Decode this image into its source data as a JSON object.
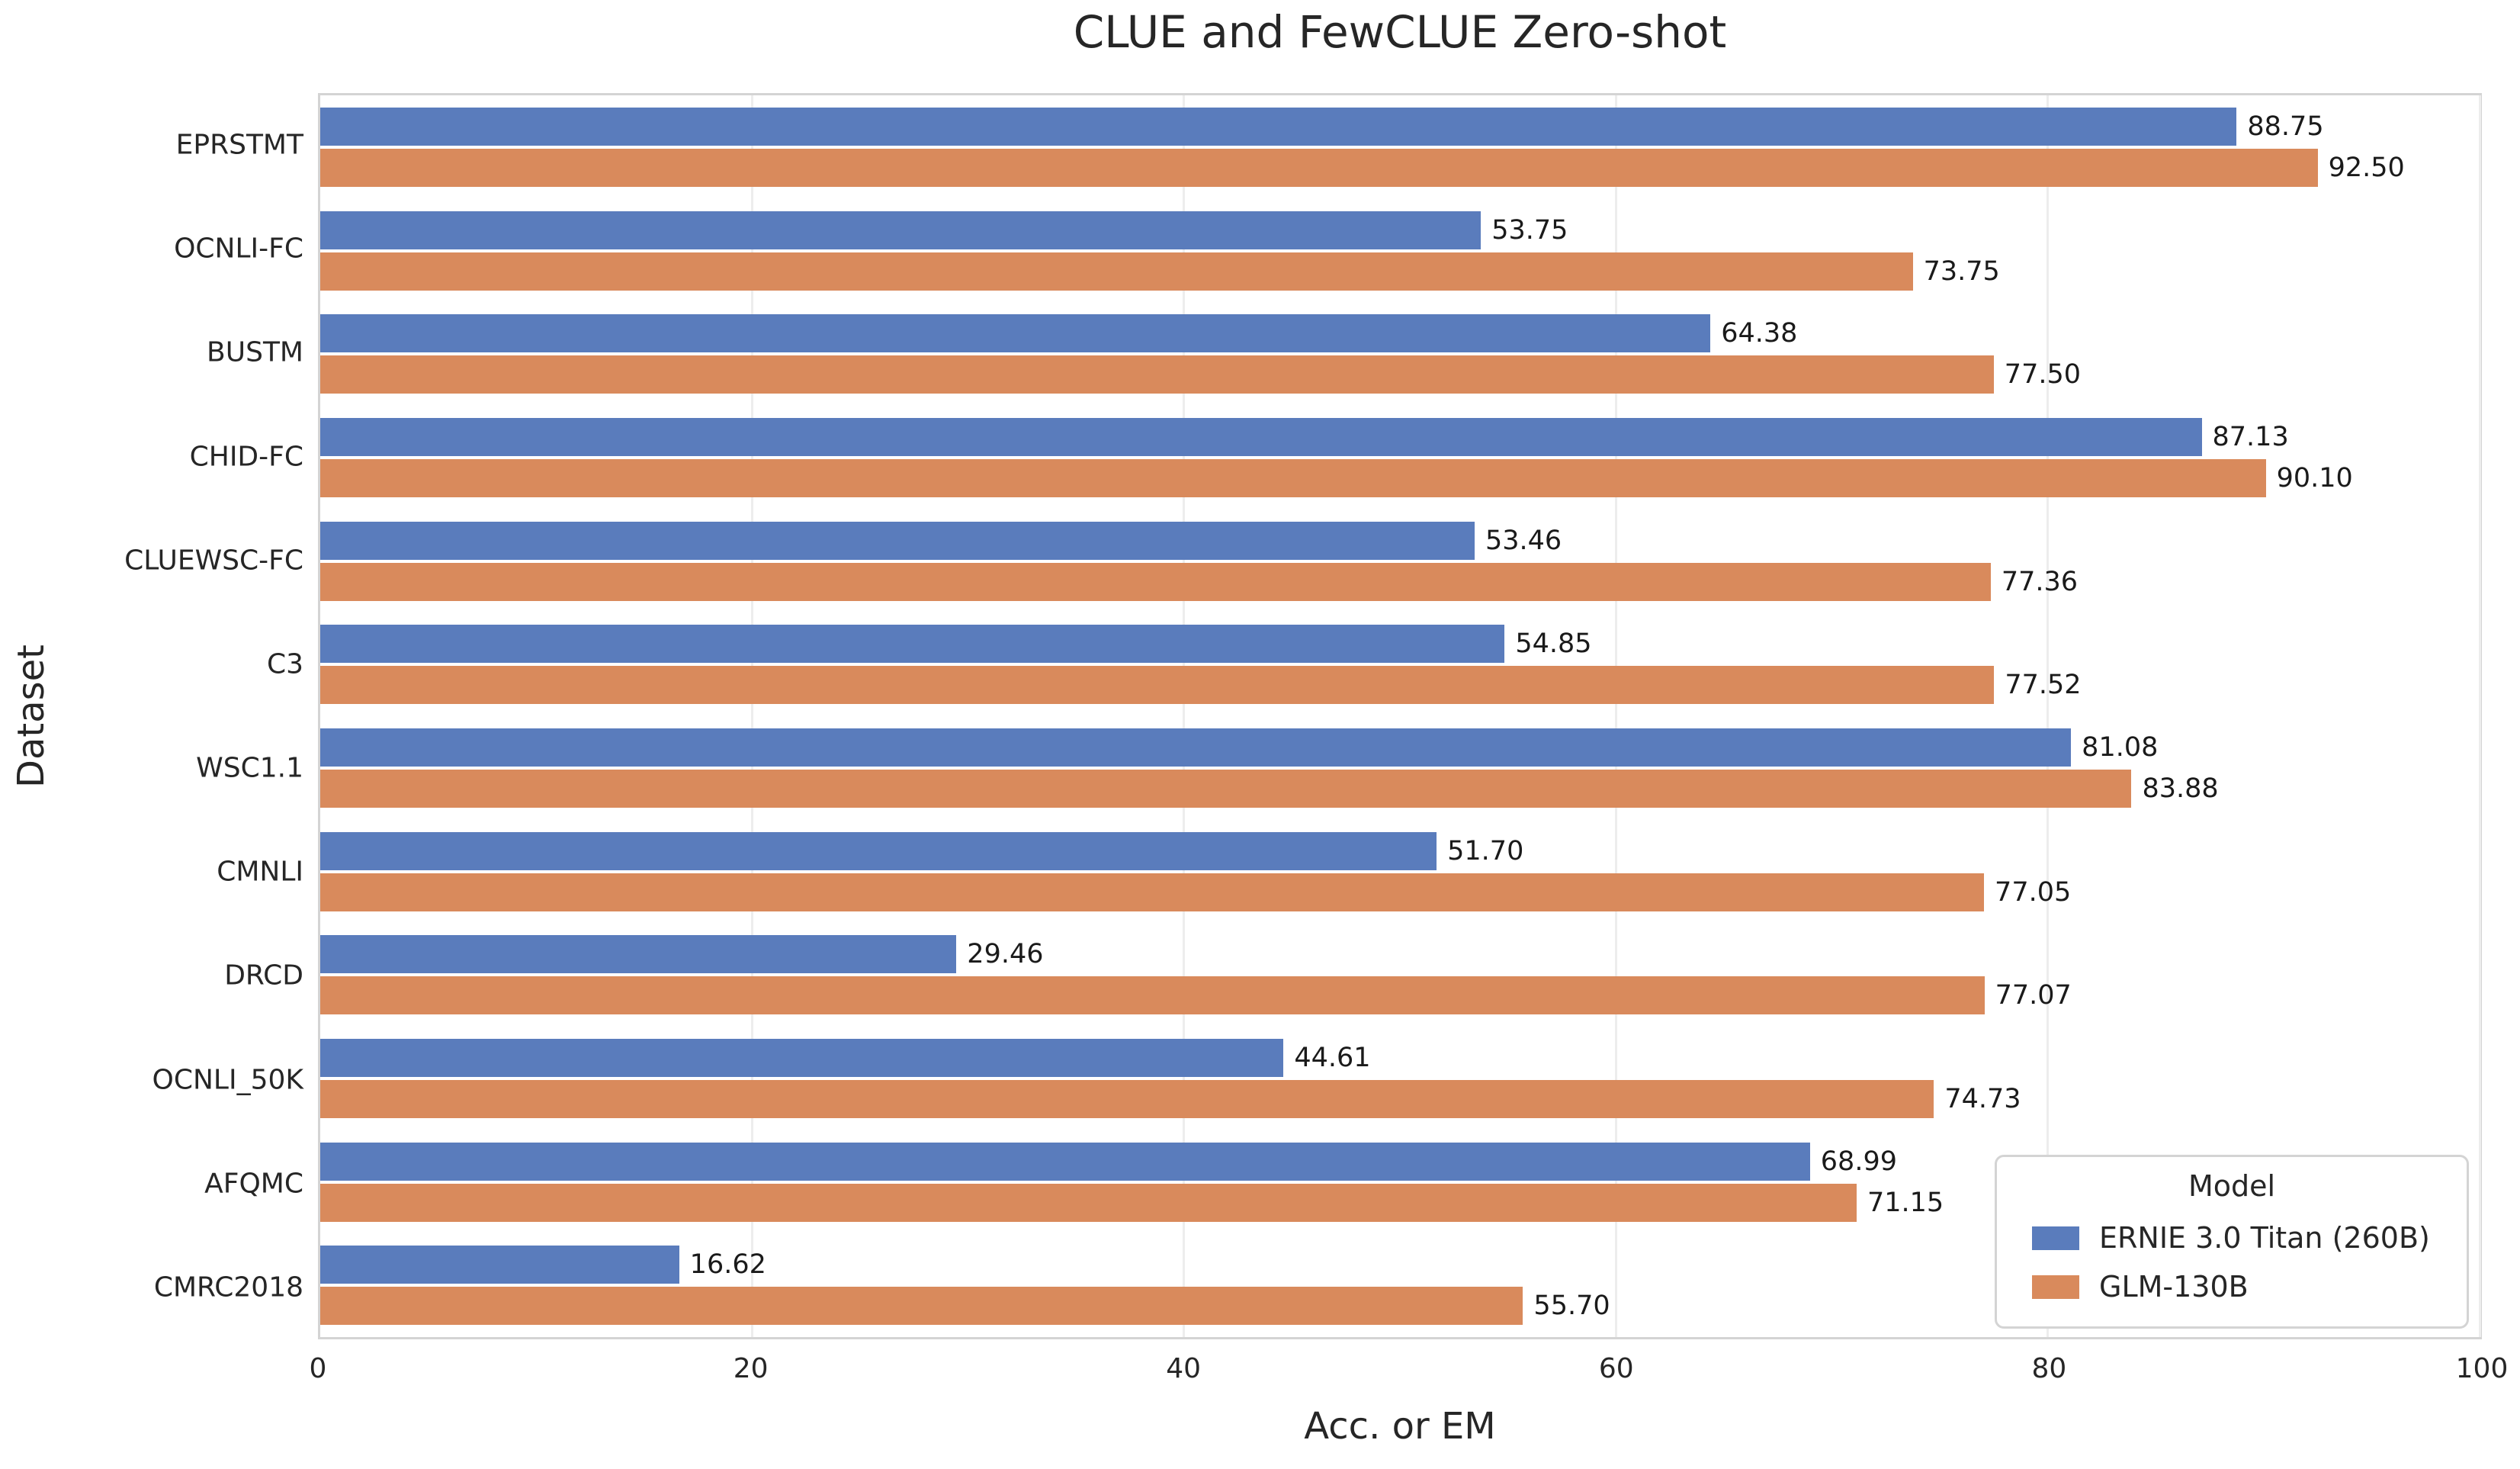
{
  "chart_data": {
    "type": "bar",
    "orientation": "horizontal",
    "title": "CLUE and FewCLUE Zero-shot",
    "xlabel": "Acc. or EM",
    "ylabel": "Dataset",
    "xlim": [
      0,
      100
    ],
    "xticks": [
      0,
      20,
      40,
      60,
      80,
      100
    ],
    "grid": "vertical-gridlines-at-xticks",
    "bar_value_labels": true,
    "value_label_decimals": 2,
    "categories": [
      "EPRSTMT",
      "OCNLI-FC",
      "BUSTM",
      "CHID-FC",
      "CLUEWSC-FC",
      "C3",
      "WSC1.1",
      "CMNLI",
      "DRCD",
      "OCNLI_50K",
      "AFQMC",
      "CMRC2018"
    ],
    "series": [
      {
        "name": "ERNIE 3.0 Titan (260B)",
        "color": "#5a7cbc",
        "values": [
          88.75,
          53.75,
          64.38,
          87.13,
          53.46,
          54.85,
          81.08,
          51.7,
          29.46,
          44.61,
          68.99,
          16.62
        ]
      },
      {
        "name": "GLM-130B",
        "color": "#d98a5c",
        "values": [
          92.5,
          73.75,
          77.5,
          90.1,
          77.36,
          77.52,
          83.88,
          77.05,
          77.07,
          74.73,
          71.15,
          55.7
        ]
      }
    ],
    "legend": {
      "title": "Model",
      "position": "lower right"
    }
  },
  "colors": {
    "background": "#ffffff",
    "spine": "#d4d4d4",
    "gridline": "#ededed",
    "text": "#262626",
    "value_label_text": "#1a1a1a"
  }
}
